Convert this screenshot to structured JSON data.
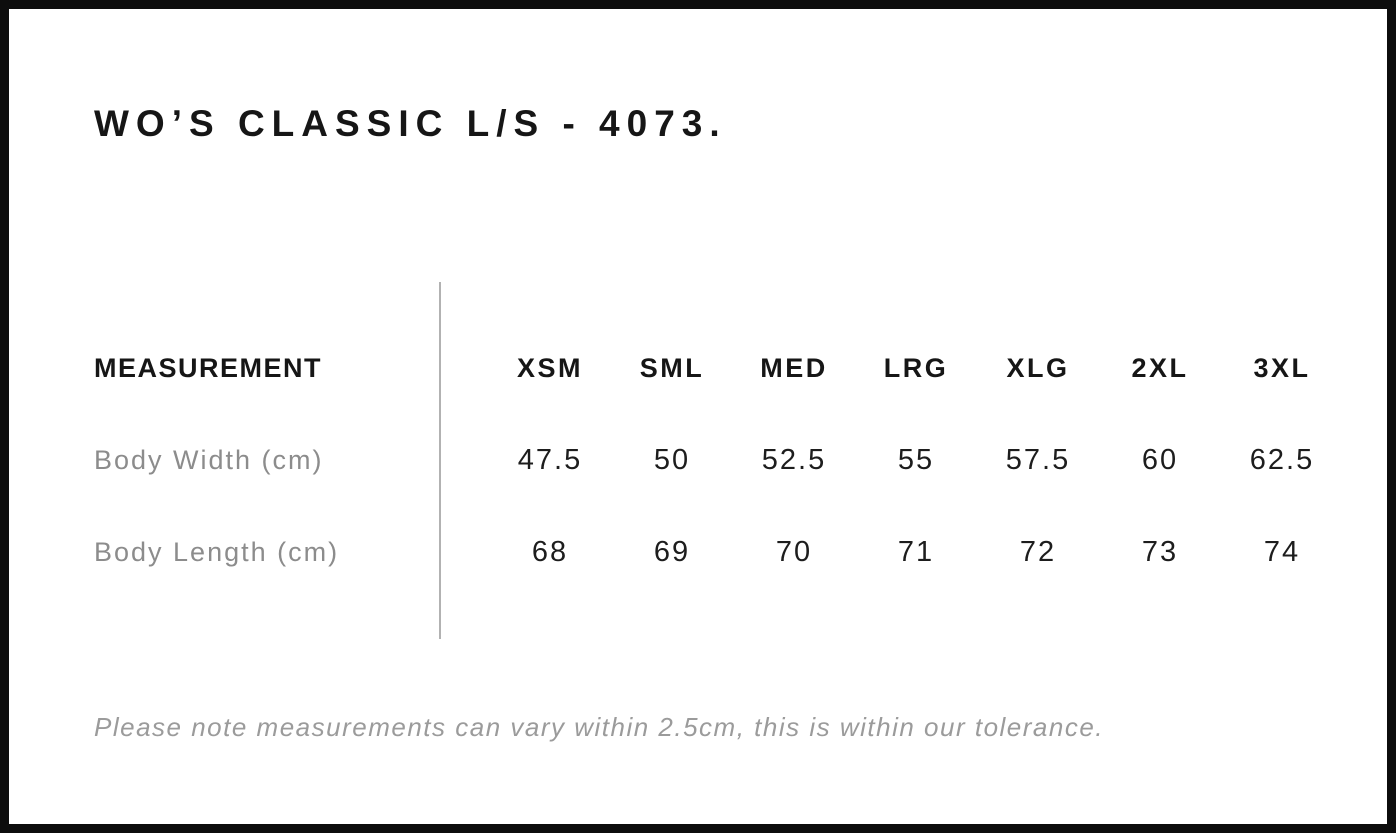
{
  "page": {
    "title": "WO’S CLASSIC L/S - 4073.",
    "tolerance_note": "Please note measurements can vary within 2.5cm, this is within our tolerance."
  },
  "size_chart": {
    "header_label": "MEASUREMENT",
    "sizes": [
      "XSM",
      "SML",
      "MED",
      "LRG",
      "XLG",
      "2XL",
      "3XL"
    ],
    "rows": [
      {
        "label": "Body Width (cm)",
        "values": [
          "47.5",
          "50",
          "52.5",
          "55",
          "57.5",
          "60",
          "62.5"
        ]
      },
      {
        "label": "Body Length (cm)",
        "values": [
          "68",
          "69",
          "70",
          "71",
          "72",
          "73",
          "74"
        ]
      }
    ]
  },
  "colors": {
    "frame_border": "#0d0d0d",
    "heading_text": "#161616",
    "value_text": "#1d1d1d",
    "row_label_text": "#8c8c8c",
    "note_text": "#9b9b9b",
    "divider": "#b2b2b2",
    "background": "#ffffff"
  }
}
